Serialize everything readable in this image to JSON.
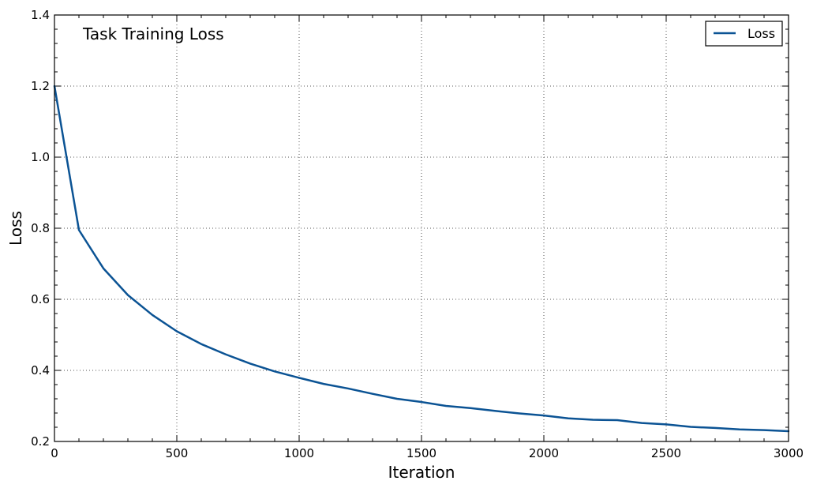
{
  "chart_data": {
    "type": "line",
    "title": "Task Training Loss",
    "xlabel": "Iteration",
    "ylabel": "Loss",
    "xlim": [
      0,
      3000
    ],
    "ylim": [
      0.2,
      1.4
    ],
    "xticks": [
      0,
      500,
      1000,
      1500,
      2000,
      2500,
      3000
    ],
    "yticks": [
      0.2,
      0.4,
      0.6,
      0.8,
      1.0,
      1.2,
      1.4
    ],
    "xtick_labels": [
      "0",
      "500",
      "1000",
      "1500",
      "2000",
      "2500",
      "3000"
    ],
    "ytick_labels": [
      "0.2",
      "0.4",
      "0.6",
      "0.8",
      "1.0",
      "1.2",
      "1.4"
    ],
    "grid": true,
    "legend_position": "top-right",
    "series": [
      {
        "name": "Loss",
        "color": "#0b5394",
        "x": [
          0,
          100,
          200,
          300,
          400,
          500,
          600,
          700,
          800,
          900,
          1000,
          1100,
          1200,
          1300,
          1400,
          1500,
          1600,
          1700,
          1800,
          1900,
          2000,
          2100,
          2200,
          2300,
          2400,
          2500,
          2600,
          2700,
          2800,
          2900,
          3000
        ],
        "y": [
          1.2,
          0.795,
          0.687,
          0.612,
          0.556,
          0.51,
          0.474,
          0.445,
          0.419,
          0.397,
          0.379,
          0.362,
          0.349,
          0.334,
          0.32,
          0.311,
          0.3,
          0.294,
          0.286,
          0.279,
          0.273,
          0.265,
          0.261,
          0.26,
          0.252,
          0.248,
          0.241,
          0.238,
          0.234,
          0.232,
          0.229
        ]
      }
    ]
  }
}
